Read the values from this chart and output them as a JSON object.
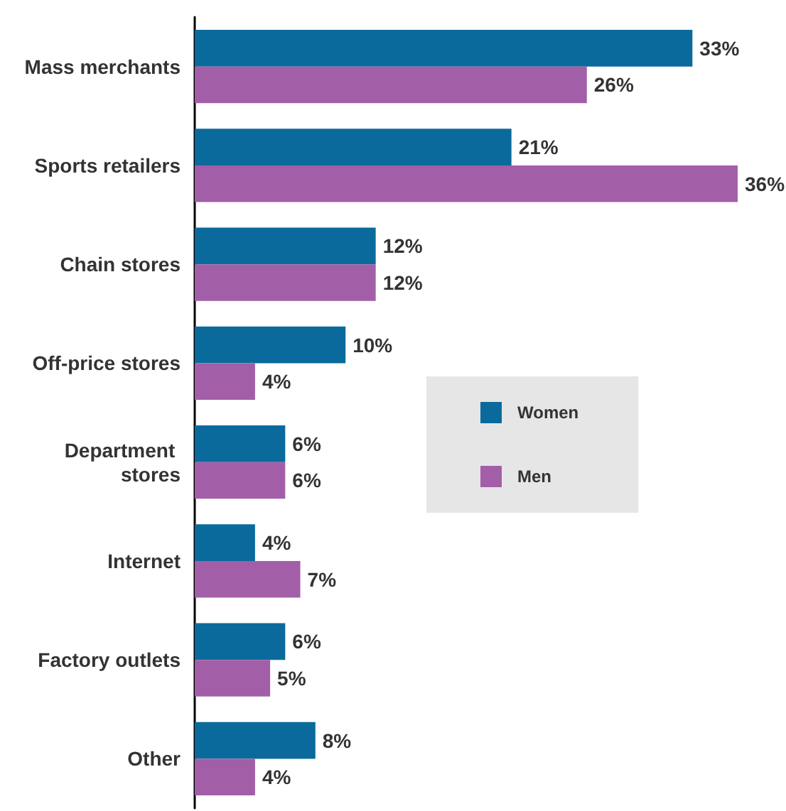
{
  "chart_data": {
    "type": "bar",
    "orientation": "horizontal",
    "categories": [
      "Mass merchants",
      "Sports retailers",
      "Chain stores",
      "Off-price stores",
      "Department stores",
      "Internet",
      "Factory outlets",
      "Other"
    ],
    "series": [
      {
        "name": "Women",
        "color": "#0b6a9c",
        "values": [
          33,
          21,
          12,
          10,
          6,
          4,
          6,
          8
        ],
        "value_labels": [
          "33%",
          "21%",
          "12%",
          "10%",
          "6%",
          "4%",
          "6%",
          "8%"
        ]
      },
      {
        "name": "Men",
        "color": "#a35ea8",
        "values": [
          26,
          36,
          12,
          4,
          6,
          7,
          5,
          4
        ],
        "value_labels": [
          "26%",
          "36%",
          "12%",
          "4%",
          "6%",
          "7%",
          "5%",
          "4%"
        ]
      }
    ],
    "legend": "right"
  }
}
